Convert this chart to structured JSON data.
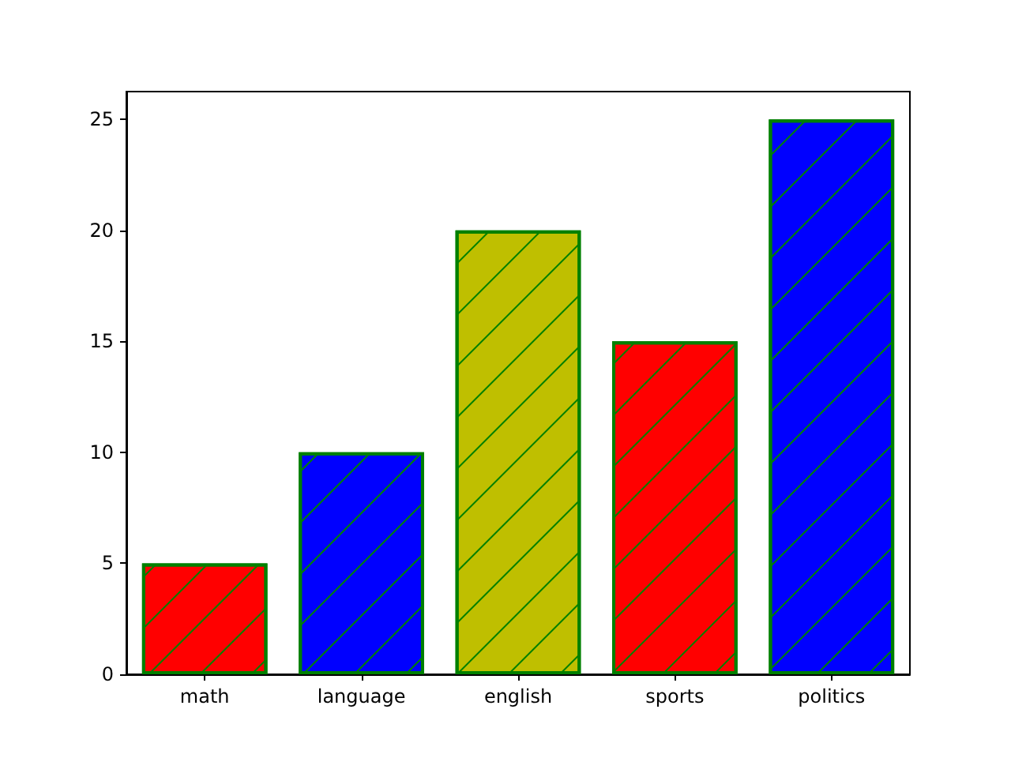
{
  "chart_data": {
    "type": "bar",
    "categories": [
      "math",
      "language",
      "english",
      "sports",
      "politics"
    ],
    "values": [
      5,
      10,
      20,
      15,
      25
    ],
    "colors": [
      "#ff0000",
      "#0000ff",
      "#bfbf00",
      "#ff0000",
      "#0000ff"
    ],
    "ylim": [
      0,
      26.25
    ],
    "yticks": [
      0,
      5,
      10,
      15,
      20,
      25
    ],
    "grid": false
  }
}
